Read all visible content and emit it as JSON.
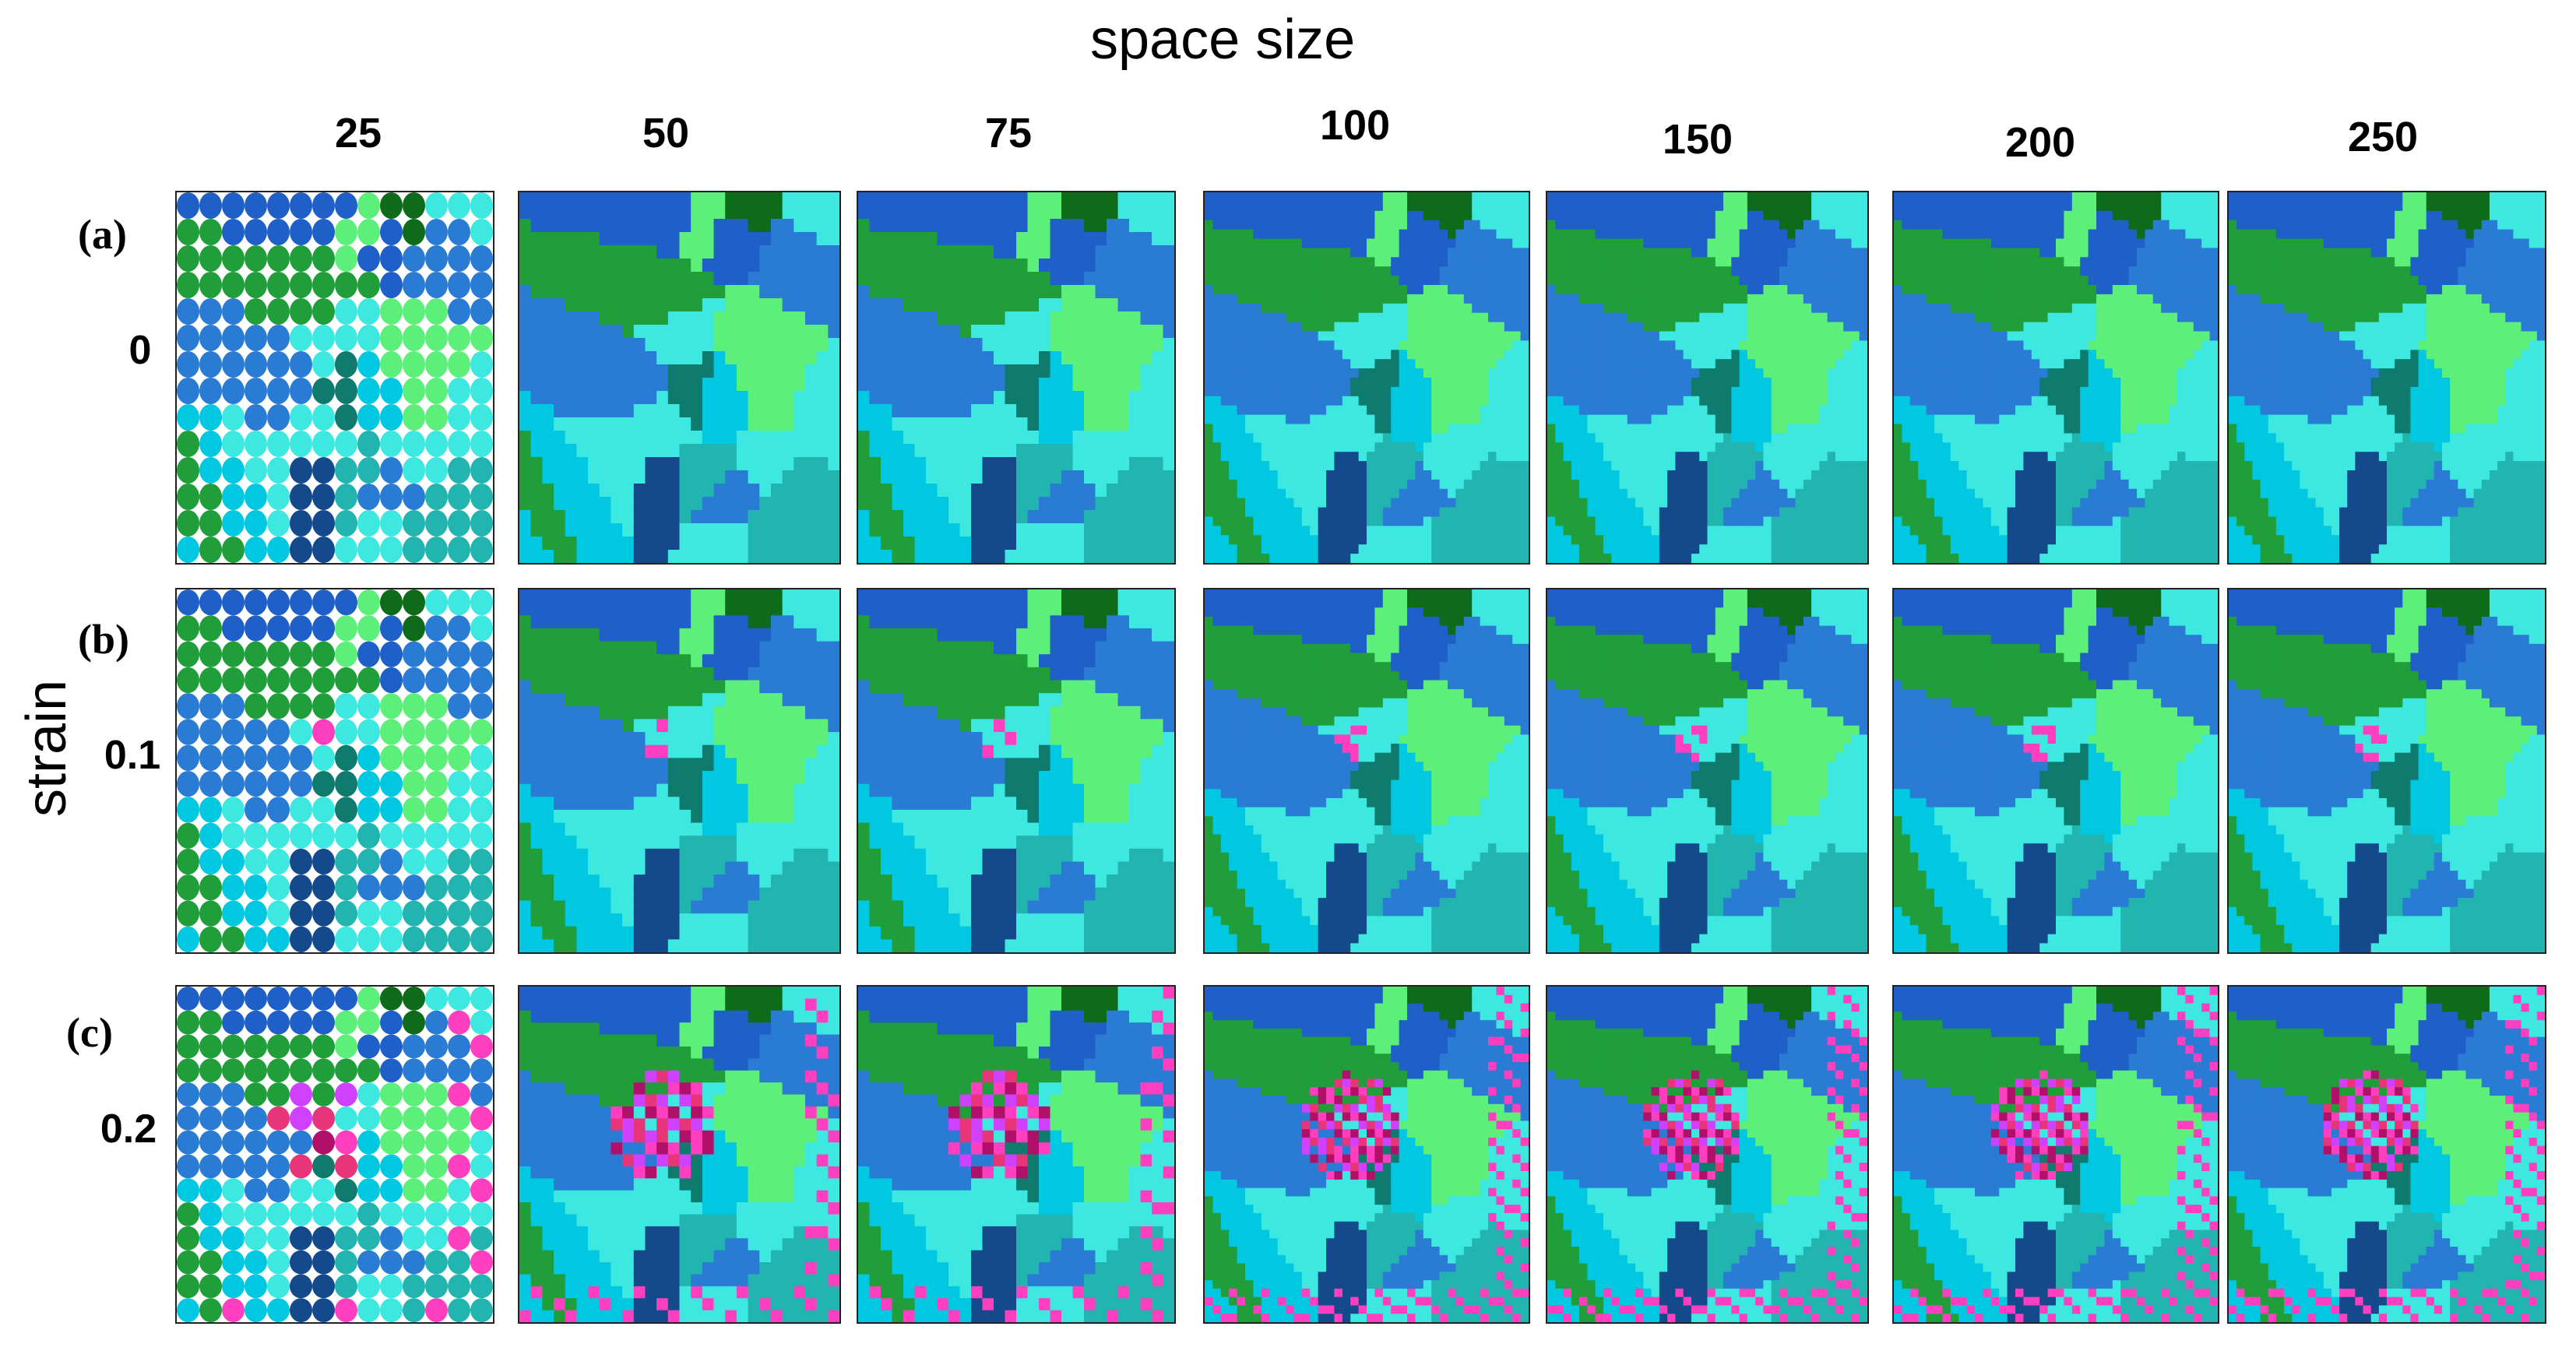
{
  "figure": {
    "xlabel": "space size",
    "ylabel": "strain",
    "columns": [
      "25",
      "50",
      "75",
      "100",
      "150",
      "200",
      "250"
    ],
    "rows": [
      {
        "letter": "(a)",
        "strain": "0"
      },
      {
        "letter": "(b)",
        "strain": "0.1"
      },
      {
        "letter": "(c)",
        "strain": "0.2"
      }
    ]
  },
  "colors": {
    "grain_palette": [
      "#1e5fc8",
      "#2a7bd4",
      "#00c8e0",
      "#3de8e0",
      "#34d88a",
      "#1f9e3a",
      "#0d6b1a",
      "#2fd43f",
      "#5cf07a",
      "#0f7a6e",
      "#144a8c",
      "#22b5b0"
    ],
    "deformation": [
      "#ff3fbf",
      "#e8357a",
      "#b0106a",
      "#d040ff"
    ]
  }
}
